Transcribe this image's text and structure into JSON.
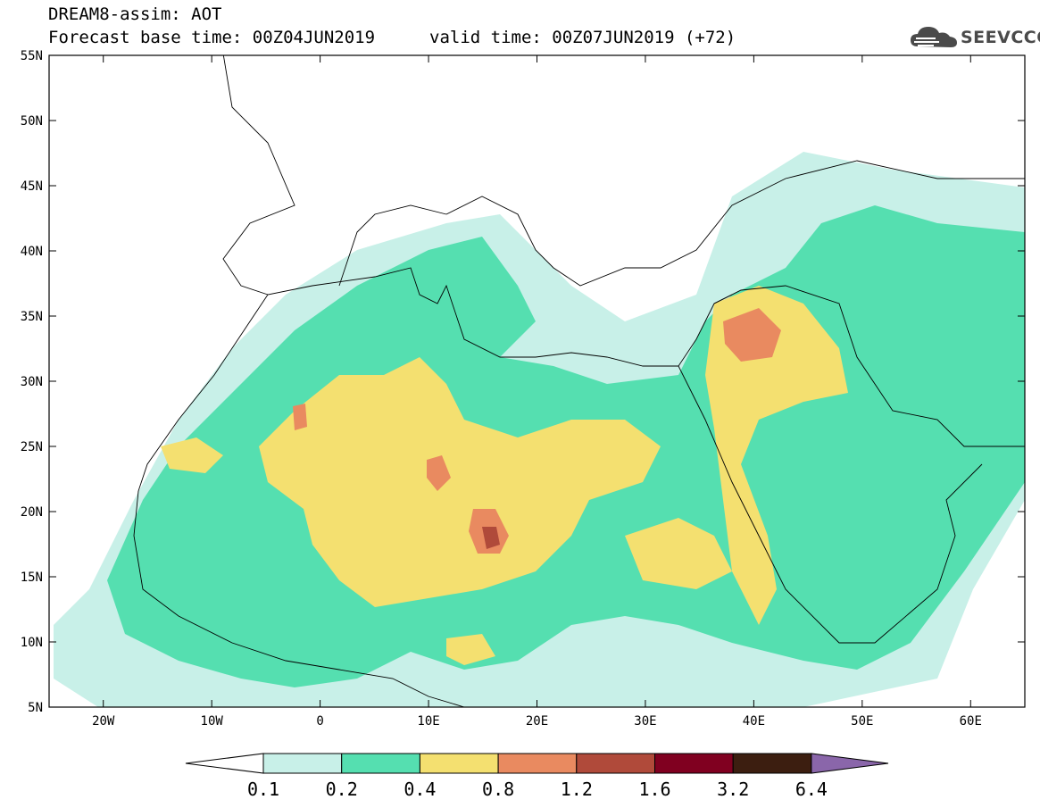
{
  "title": {
    "line1": "DREAM8-assim: AOT",
    "line2": "Forecast base time: 00Z04JUN2019",
    "valid": "valid time: 00Z07JUN2019 (+72)"
  },
  "logo": {
    "text": "SEEVCCC",
    "icon": "cloud-icon"
  },
  "map": {
    "lon_range": [
      -25,
      65
    ],
    "lat_range": [
      5,
      55
    ],
    "lat_ticks": [
      "5N",
      "10N",
      "15N",
      "20N",
      "25N",
      "30N",
      "35N",
      "40N",
      "45N",
      "50N",
      "55N"
    ],
    "lon_ticks": [
      "20W",
      "10W",
      "0",
      "10E",
      "20E",
      "30E",
      "40E",
      "50E",
      "60E"
    ],
    "background": "#ffffff"
  },
  "colorbar": {
    "labels": [
      "0.1",
      "0.2",
      "0.4",
      "0.8",
      "1.2",
      "1.6",
      "3.2",
      "6.4"
    ],
    "colors": [
      "#ffffff",
      "#c8f0e8",
      "#55dfb0",
      "#f4e070",
      "#e98a60",
      "#b04a3a",
      "#800020",
      "#3c1e10",
      "#8a66aa"
    ]
  }
}
